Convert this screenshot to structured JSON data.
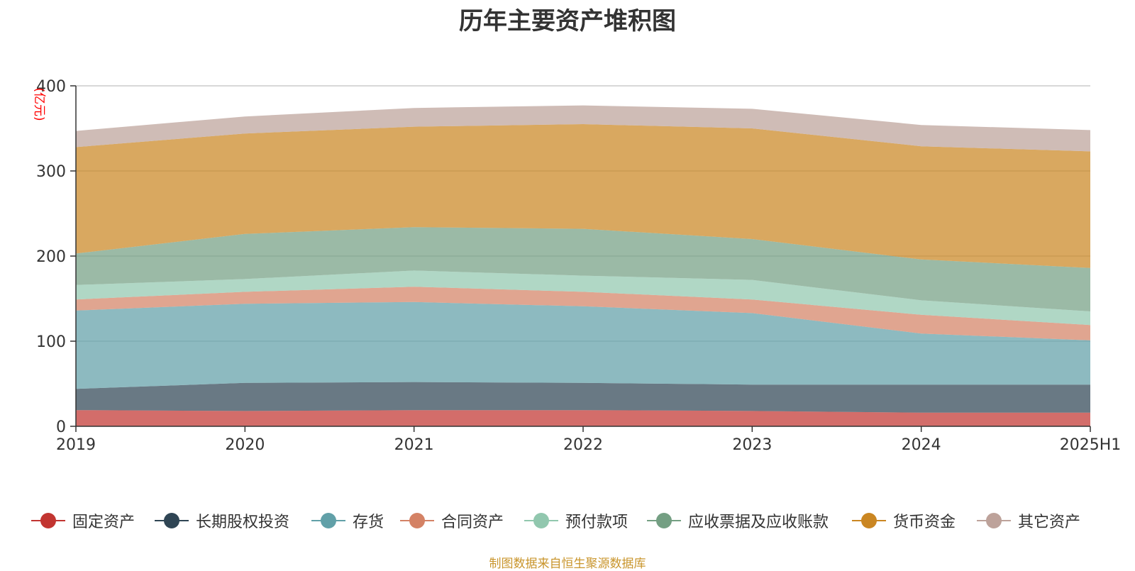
{
  "chart_data": {
    "type": "area",
    "stacked": true,
    "title": "历年主要资产堆积图",
    "ylabel": "(亿元)",
    "xlabel": "",
    "categories": [
      "2019",
      "2020",
      "2021",
      "2022",
      "2023",
      "2024",
      "2025H1"
    ],
    "ylim": [
      0,
      400
    ],
    "yticks": [
      0,
      100,
      200,
      300,
      400
    ],
    "grid": true,
    "legend_position": "bottom",
    "series": [
      {
        "name": "固定资产",
        "color": "#c23531",
        "values": [
          19,
          18,
          19,
          19,
          18,
          16,
          16
        ]
      },
      {
        "name": "长期股权投资",
        "color": "#2f4554",
        "values": [
          25,
          33,
          33,
          32,
          31,
          33,
          33
        ]
      },
      {
        "name": "存货",
        "color": "#61a0a8",
        "values": [
          92,
          93,
          94,
          90,
          84,
          60,
          52
        ]
      },
      {
        "name": "合同资产",
        "color": "#d48265",
        "values": [
          13,
          14,
          18,
          17,
          16,
          22,
          18
        ]
      },
      {
        "name": "预付款项",
        "color": "#91c7ae",
        "values": [
          17,
          15,
          19,
          19,
          23,
          17,
          16
        ]
      },
      {
        "name": "应收票据及应收账款",
        "color": "#749f83",
        "values": [
          37,
          53,
          51,
          55,
          48,
          48,
          51
        ]
      },
      {
        "name": "货币资金",
        "color": "#ca8622",
        "values": [
          125,
          118,
          118,
          123,
          130,
          133,
          137
        ]
      },
      {
        "name": "其它资产",
        "color": "#bda29a",
        "values": [
          19,
          20,
          22,
          22,
          23,
          25,
          25
        ]
      }
    ]
  },
  "source_note": "制图数据来自恒生聚源数据库"
}
